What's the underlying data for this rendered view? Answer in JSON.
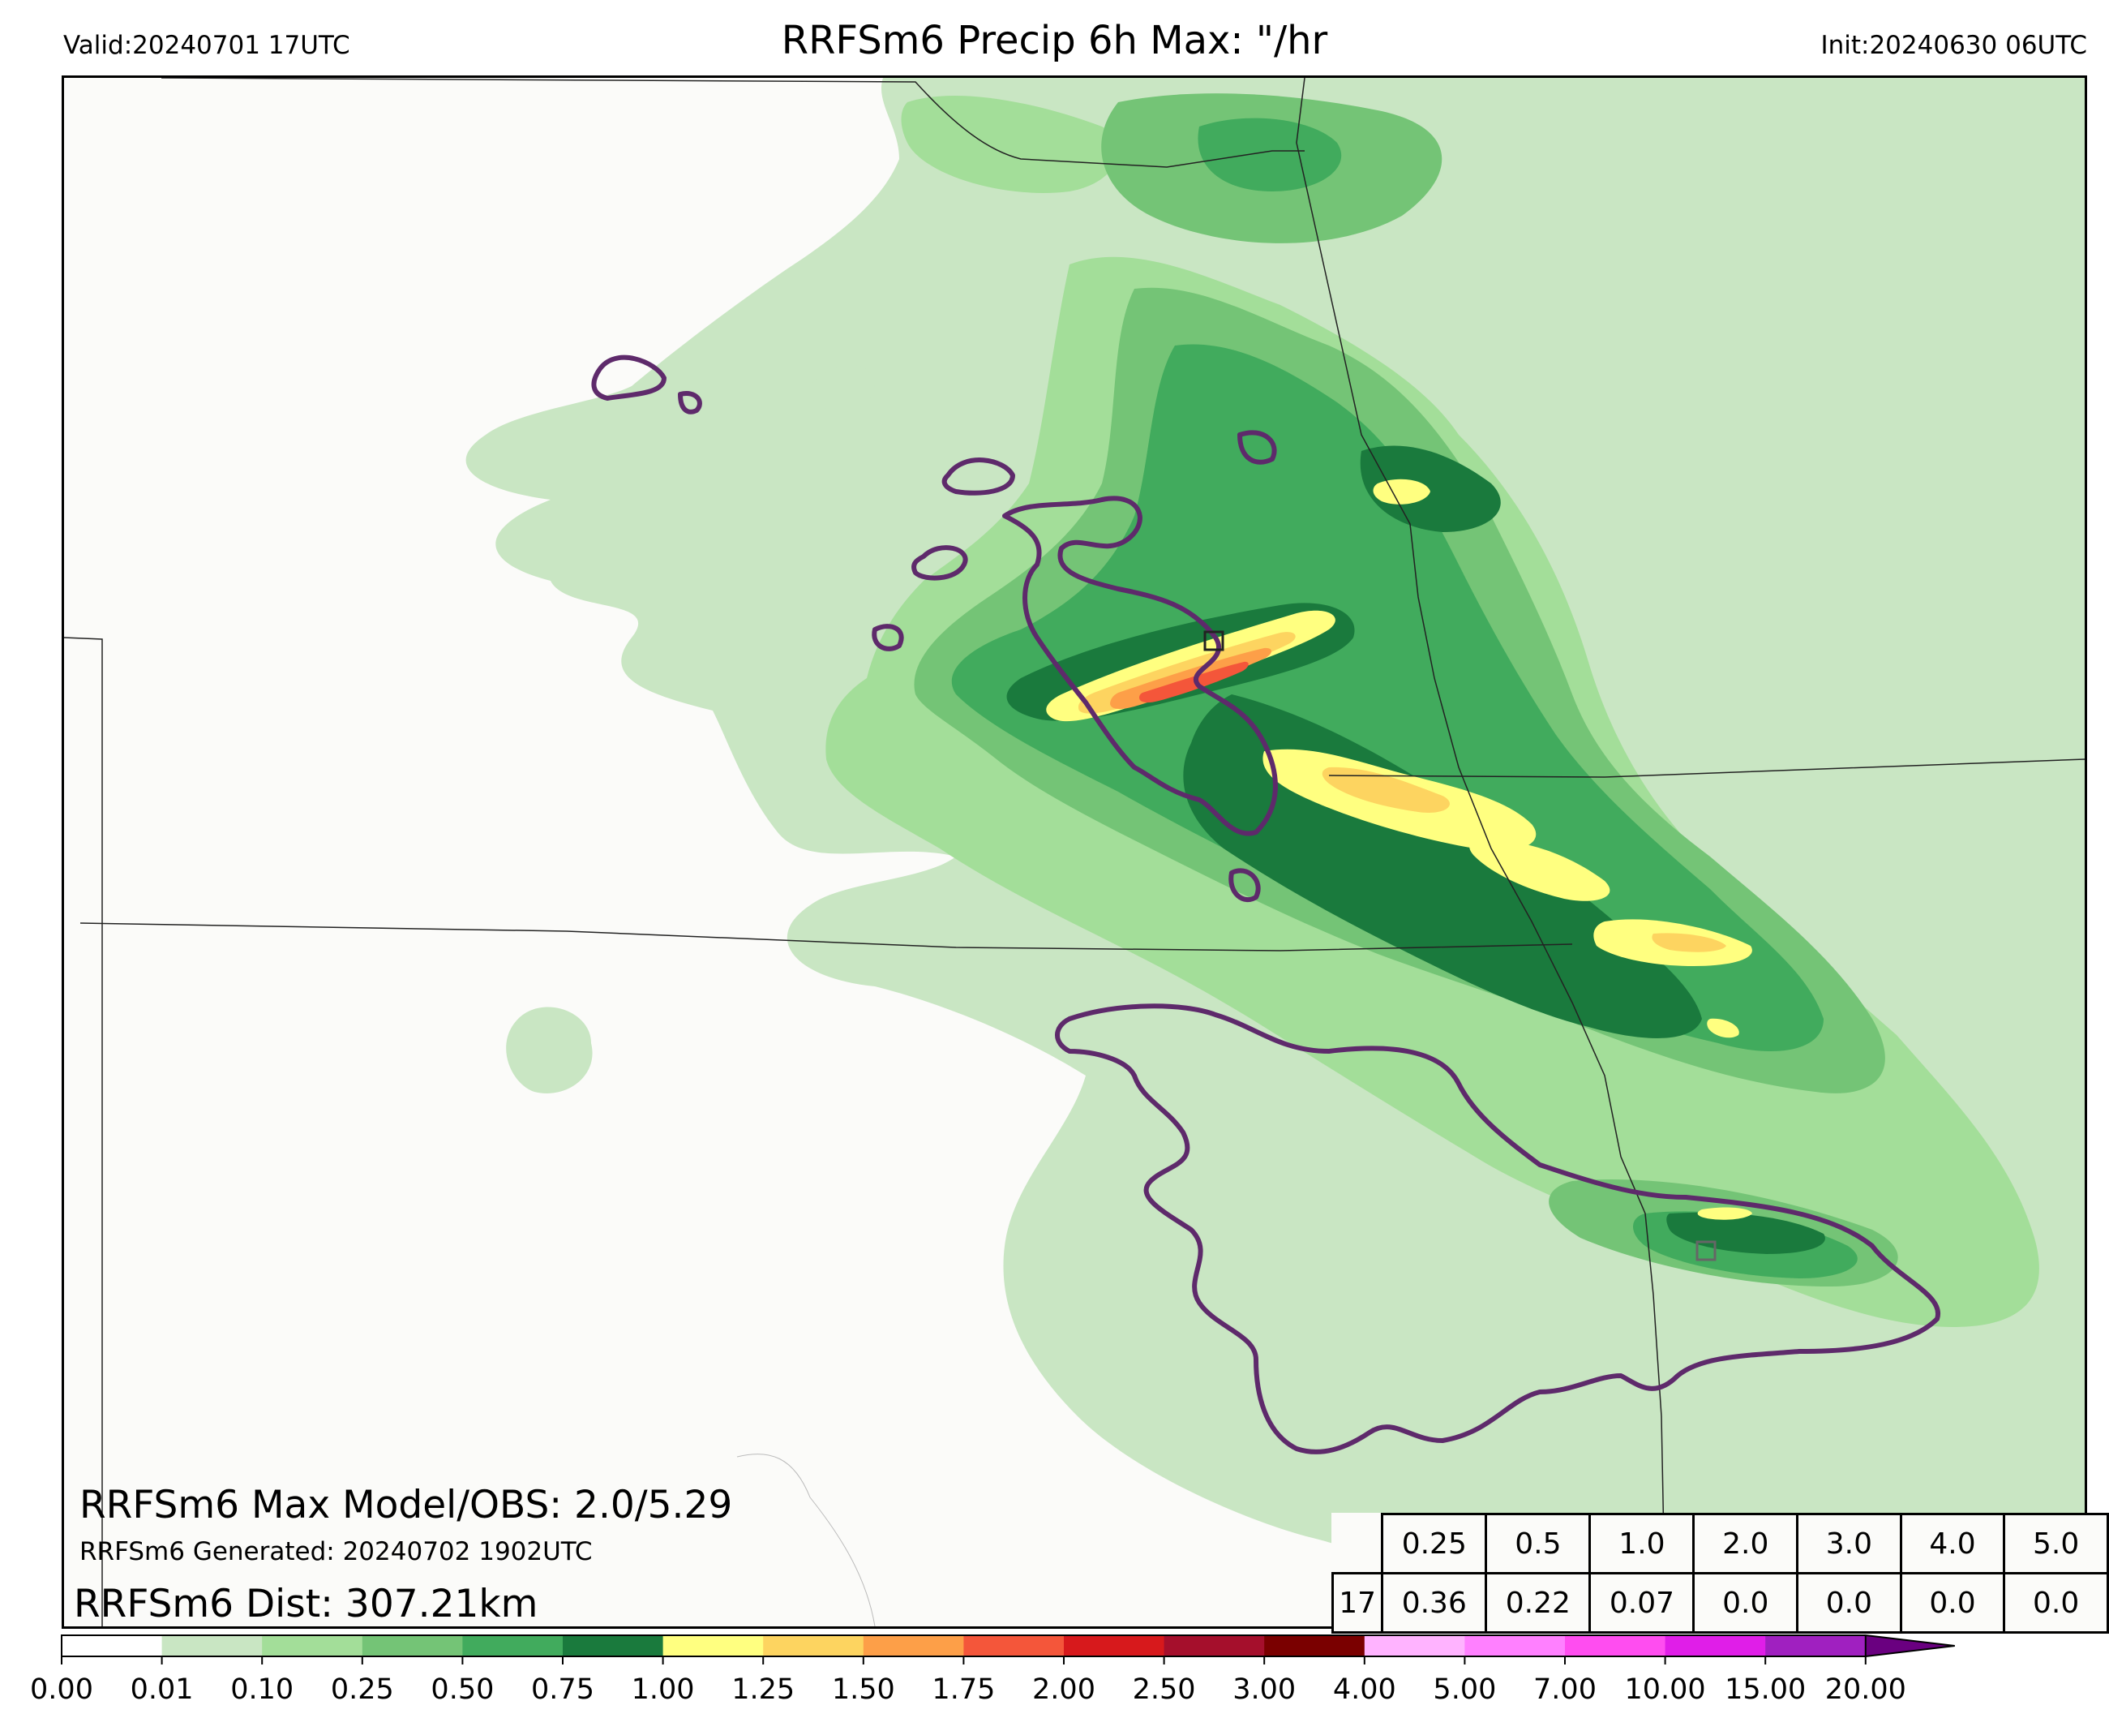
{
  "header": {
    "valid": "Valid:20240701 17UTC",
    "title": "RRFSm6 Precip 6h Max: \"/hr",
    "init": "Init:20240630 06UTC"
  },
  "stats": {
    "max_line": "RRFSm6 Max Model/OBS: 2.0/5.29",
    "generated_line": "RRFSm6 Generated: 20240702 1902UTC",
    "dist_line": "RRFSm6 Dist: 307.21km"
  },
  "threshold_table": {
    "thresholds": [
      "0.25",
      "0.5",
      "1.0",
      "2.0",
      "3.0",
      "4.0",
      "5.0"
    ],
    "hour": "17",
    "values": [
      "0.36",
      "0.22",
      "0.07",
      "0.0",
      "0.0",
      "0.0",
      "0.0"
    ]
  },
  "colorbar": {
    "labels": [
      "0.00",
      "0.01",
      "0.10",
      "0.25",
      "0.50",
      "0.75",
      "1.00",
      "1.25",
      "1.50",
      "1.75",
      "2.00",
      "2.50",
      "3.00",
      "4.00",
      "5.00",
      "7.00",
      "10.00",
      "15.00",
      "20.00"
    ],
    "colors": [
      "#ffffff",
      "#c9e6c3",
      "#a3de99",
      "#74c476",
      "#41ab5d",
      "#1a7a3d",
      "#ffff80",
      "#fdd460",
      "#fd9f48",
      "#f4563a",
      "#d7191c",
      "#a50f2c",
      "#7a0000",
      "#ffb3ff",
      "#ff80ff",
      "#ff4df0",
      "#e01ee8",
      "#a020c0"
    ],
    "extend_color": "#6a0080"
  },
  "map": {
    "obs_contour_color": "#5e2a6b",
    "border_color": "#222222"
  }
}
